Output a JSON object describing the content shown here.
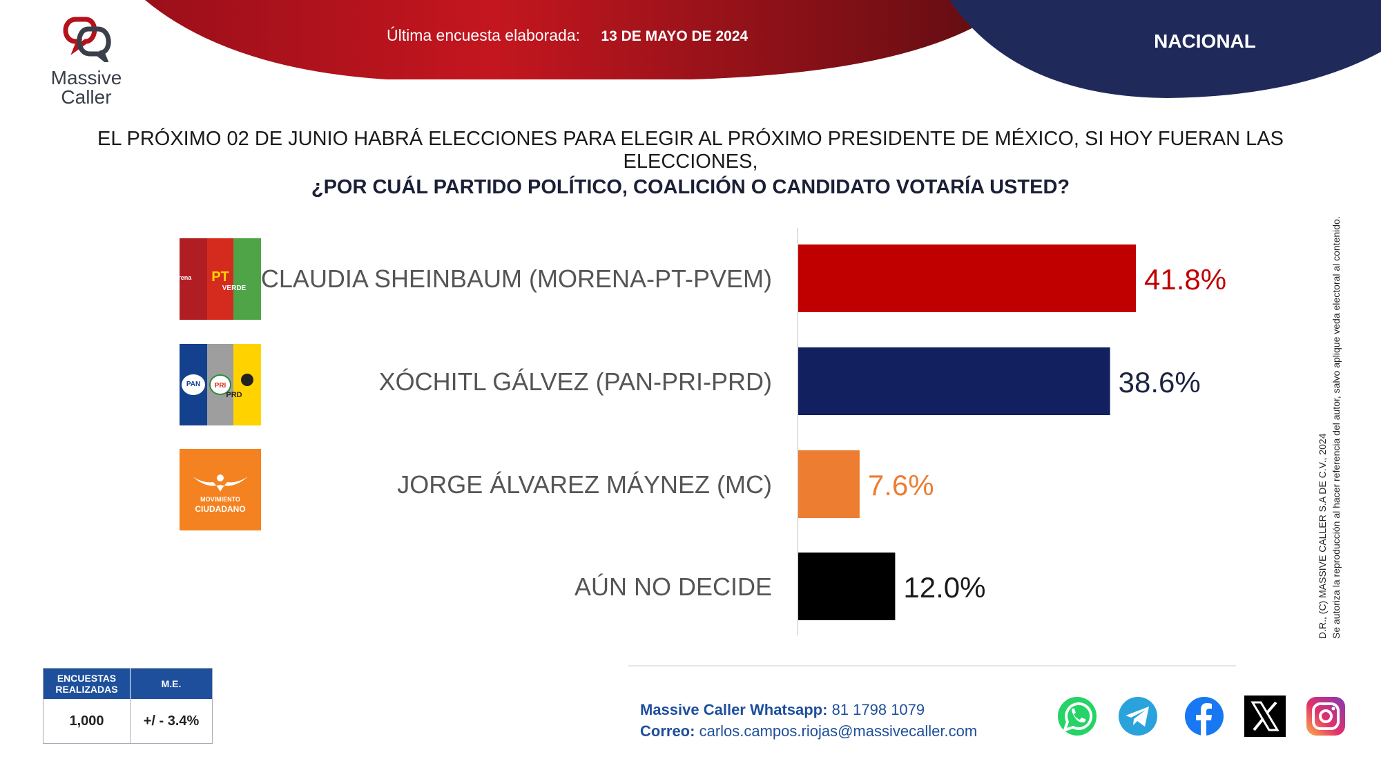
{
  "brand": {
    "name_line1": "Massive",
    "name_line2": "Caller"
  },
  "header": {
    "survey_label": "Última encuesta elaborada:",
    "survey_date": "13 DE MAYO DE 2024",
    "scope": "NACIONAL"
  },
  "question": {
    "line1": "EL PRÓXIMO 02 DE JUNIO HABRÁ ELECCIONES PARA ELEGIR AL PRÓXIMO PRESIDENTE DE MÉXICO, SI HOY FUERAN LAS ELECCIONES,",
    "line2": "¿POR CUÁL PARTIDO POLÍTICO, COALICIÓN O CANDIDATO VOTARÍA USTED?"
  },
  "chart_data": {
    "type": "bar",
    "orientation": "horizontal",
    "categories": [
      "CLAUDIA SHEINBAUM (MORENA-PT-PVEM)",
      "XÓCHITL GÁLVEZ (PAN-PRI-PRD)",
      "JORGE ÁLVAREZ MÁYNEZ (MC)",
      "AÚN NO DECIDE"
    ],
    "values": [
      41.8,
      38.6,
      7.6,
      12.0
    ],
    "value_labels": [
      "41.8%",
      "38.6%",
      "7.6%",
      "12.0%"
    ],
    "bar_colors": [
      "#c00000",
      "#12205f",
      "#ed7d31",
      "#000000"
    ],
    "label_colors": [
      "#c00000",
      "#1a2340",
      "#ed7d31",
      "#1a1a1a"
    ],
    "xlim": [
      0,
      100
    ],
    "grid": false,
    "legend": "none"
  },
  "party_logos": [
    {
      "icon": "morena-pt-verde-logo",
      "texts": [
        "morena",
        "PT",
        "VERDE"
      ]
    },
    {
      "icon": "pan-pri-prd-logo",
      "texts": [
        "PAN",
        "PRI",
        "PRD"
      ]
    },
    {
      "icon": "movimiento-ciudadano-logo",
      "texts": [
        "MOVIMIENTO",
        "CIUDADANO"
      ]
    }
  ],
  "side_note": {
    "line1": "D.R., (C) MASSIVE CALLER S.A DE C.V., 2024",
    "line2": "Se autoriza la reproducción al hacer referencia del autor, salvo aplique veda electoral al contenido."
  },
  "stats": {
    "surveys_header": "ENCUESTAS REALIZADAS",
    "me_header": "M.E.",
    "surveys_value": "1,000",
    "me_value": "+/ - 3.4%"
  },
  "contact": {
    "whatsapp_label": "Massive Caller Whatsapp:",
    "whatsapp_value": "81 1798 1079",
    "email_label": "Correo:",
    "email_value": "carlos.campos.riojas@massivecaller.com"
  },
  "social_icons": [
    "whatsapp-icon",
    "telegram-icon",
    "facebook-icon",
    "x-icon",
    "instagram-icon"
  ],
  "colors": {
    "header_red": "#b5121b",
    "header_navy": "#1f2a5a",
    "table_blue": "#1e4f9c"
  }
}
